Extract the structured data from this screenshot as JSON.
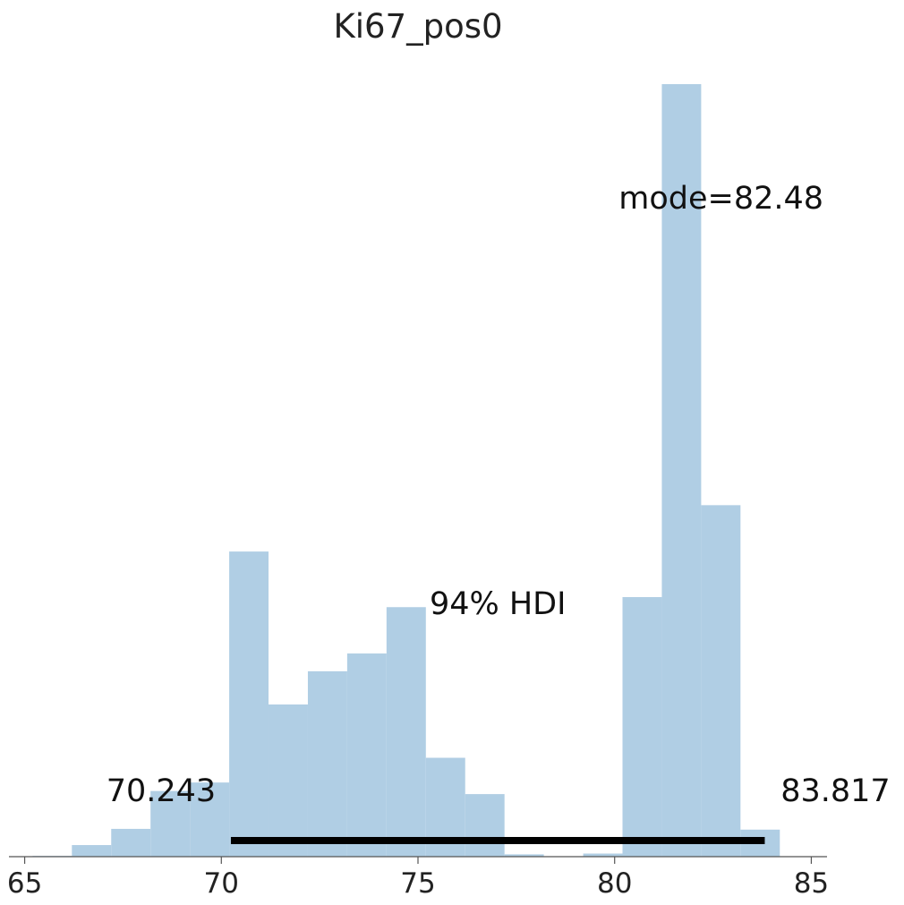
{
  "chart_data": {
    "type": "bar",
    "title": "Ki67_pos0",
    "xlabel": "",
    "ylabel": "",
    "xlim": [
      64.6,
      85.4
    ],
    "ylim": [
      0,
      1.0
    ],
    "grid": false,
    "x_ticks": [
      65,
      70,
      75,
      80,
      85
    ],
    "x_tick_labels": [
      "65",
      "70",
      "75",
      "80",
      "85"
    ],
    "bins": [
      {
        "x0": 65.2,
        "x1": 66.2,
        "height": 0.001
      },
      {
        "x0": 66.2,
        "x1": 67.2,
        "height": 0.015
      },
      {
        "x0": 67.2,
        "x1": 68.2,
        "height": 0.036
      },
      {
        "x0": 68.2,
        "x1": 69.2,
        "height": 0.085
      },
      {
        "x0": 69.2,
        "x1": 70.2,
        "height": 0.096
      },
      {
        "x0": 70.2,
        "x1": 71.2,
        "height": 0.395
      },
      {
        "x0": 71.2,
        "x1": 72.2,
        "height": 0.197
      },
      {
        "x0": 72.2,
        "x1": 73.2,
        "height": 0.24
      },
      {
        "x0": 73.2,
        "x1": 74.2,
        "height": 0.263
      },
      {
        "x0": 74.2,
        "x1": 75.2,
        "height": 0.323
      },
      {
        "x0": 75.2,
        "x1": 76.2,
        "height": 0.128
      },
      {
        "x0": 76.2,
        "x1": 77.2,
        "height": 0.081
      },
      {
        "x0": 77.2,
        "x1": 78.2,
        "height": 0.003
      },
      {
        "x0": 78.2,
        "x1": 79.2,
        "height": 0.0
      },
      {
        "x0": 79.2,
        "x1": 80.2,
        "height": 0.004
      },
      {
        "x0": 80.2,
        "x1": 81.2,
        "height": 0.336
      },
      {
        "x0": 81.2,
        "x1": 82.2,
        "height": 1.0
      },
      {
        "x0": 82.2,
        "x1": 83.2,
        "height": 0.455
      },
      {
        "x0": 83.2,
        "x1": 84.2,
        "height": 0.035
      }
    ],
    "hdi": {
      "low": 70.243,
      "high": 83.817,
      "low_label": "70.243",
      "high_label": "83.817",
      "label": "94% HDI"
    },
    "mode": {
      "value": 82.48,
      "label": "mode=82.48"
    },
    "colors": {
      "bar": "#b0cee4",
      "hdi": "#000000"
    }
  }
}
